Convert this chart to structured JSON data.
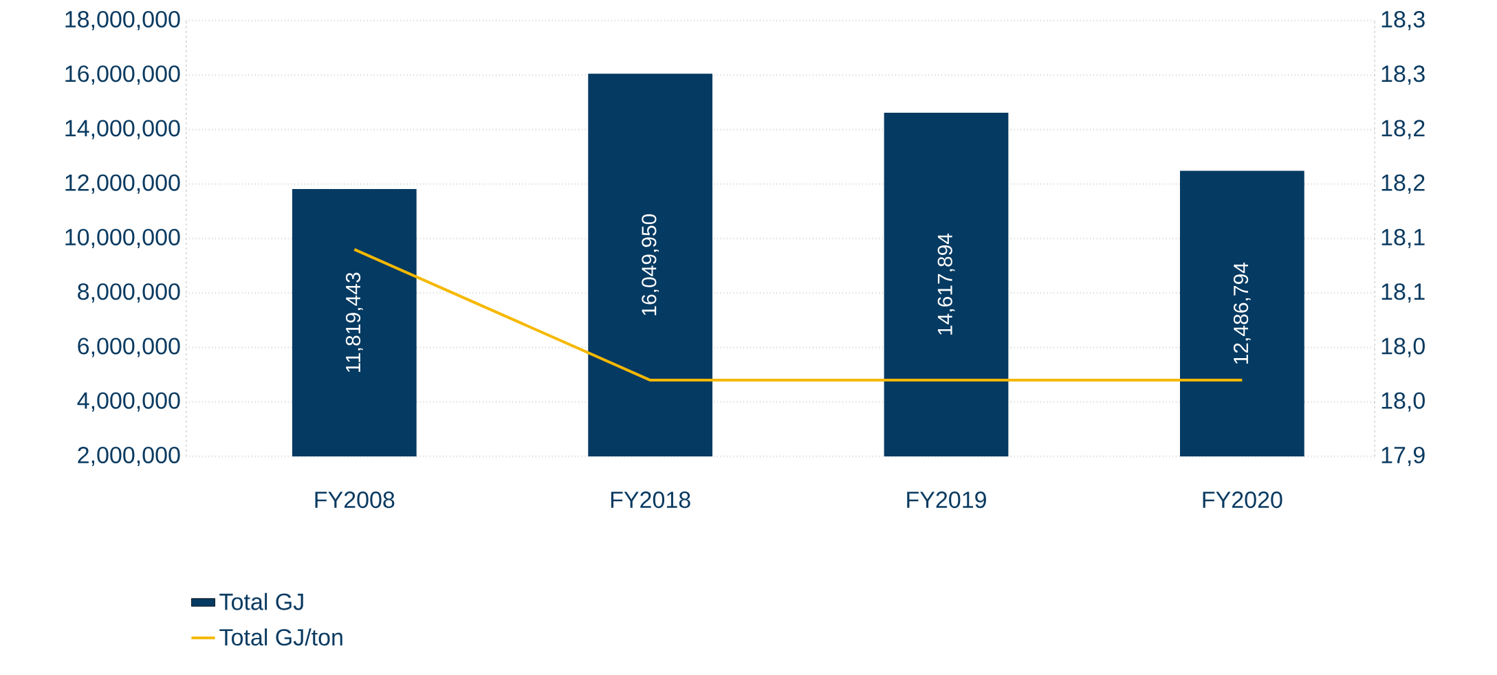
{
  "chart_data": {
    "type": "bar",
    "categories": [
      "FY2008",
      "FY2018",
      "FY2019",
      "FY2020"
    ],
    "series": [
      {
        "name": "Total GJ",
        "color": "#053a62",
        "values": [
          11819443,
          16049950,
          14617894,
          12486794
        ],
        "value_labels": [
          "11,819,443",
          "16,049,950",
          "14,617,894",
          "12,486,794"
        ]
      },
      {
        "name": "Total GJ/ton",
        "type": "line",
        "axis": "y2",
        "color": "#f5b800",
        "values": [
          18.09,
          17.97,
          17.97,
          17.97
        ]
      }
    ],
    "ylim": [
      2000000,
      18000000
    ],
    "yticks": [
      {
        "value": 2000000,
        "label": "2,000,000"
      },
      {
        "value": 4000000,
        "label": "4,000,000"
      },
      {
        "value": 6000000,
        "label": "6,000,000"
      },
      {
        "value": 8000000,
        "label": "8,000,000"
      },
      {
        "value": 10000000,
        "label": "10,000,000"
      },
      {
        "value": 12000000,
        "label": "12,000,000"
      },
      {
        "value": 14000000,
        "label": "14,000,000"
      },
      {
        "value": 16000000,
        "label": "16,000,000"
      },
      {
        "value": 18000000,
        "label": "18,000,000"
      }
    ],
    "y2lim": [
      17.9,
      18.3
    ],
    "y2ticks": [
      {
        "value": 17.9,
        "label": "17,9"
      },
      {
        "value": 17.95,
        "label": "18,0"
      },
      {
        "value": 18.0,
        "label": "18,0"
      },
      {
        "value": 18.05,
        "label": "18,1"
      },
      {
        "value": 18.1,
        "label": "18,1"
      },
      {
        "value": 18.15,
        "label": "18,2"
      },
      {
        "value": 18.2,
        "label": "18,2"
      },
      {
        "value": 18.25,
        "label": "18,3"
      },
      {
        "value": 18.3,
        "label": "18,3"
      }
    ],
    "grid": "y",
    "legend": "bottom left",
    "marker": "none"
  }
}
